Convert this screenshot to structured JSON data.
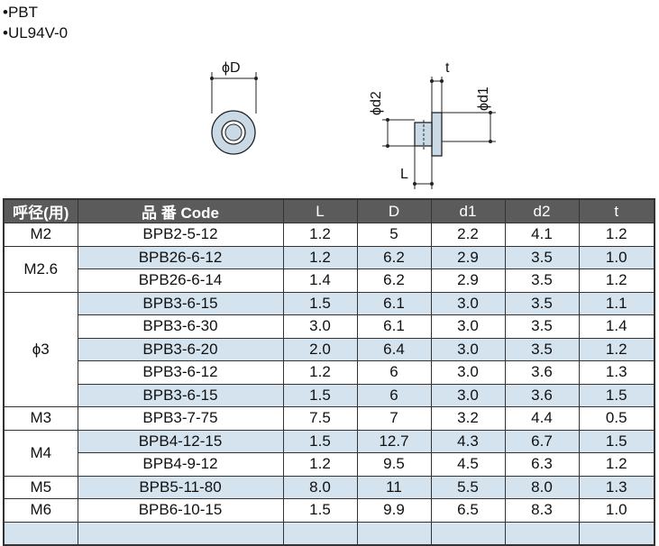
{
  "materials": [
    "•PBT",
    "•UL94V-0"
  ],
  "diagram_labels": {
    "front_D": "ϕD",
    "side_t": "t",
    "side_d2": "ϕd2",
    "side_d1": "ϕd1",
    "side_L": "L"
  },
  "table": {
    "headers": [
      "呼径(用)",
      "品 番 Code",
      "L",
      "D",
      "d1",
      "d2",
      "t"
    ],
    "groups": [
      {
        "size": "M2",
        "rows": [
          {
            "code": "BPB2-5-12",
            "L": "1.2",
            "D": "5",
            "d1": "2.2",
            "d2": "4.1",
            "t": "1.2"
          }
        ]
      },
      {
        "size": "M2.6",
        "rows": [
          {
            "code": "BPB26-6-12",
            "L": "1.2",
            "D": "6.2",
            "d1": "2.9",
            "d2": "3.5",
            "t": "1.0"
          },
          {
            "code": "BPB26-6-14",
            "L": "1.4",
            "D": "6.2",
            "d1": "2.9",
            "d2": "3.5",
            "t": "1.2"
          }
        ]
      },
      {
        "size": "ϕ3",
        "rows": [
          {
            "code": "BPB3-6-15",
            "L": "1.5",
            "D": "6.1",
            "d1": "3.0",
            "d2": "3.5",
            "t": "1.1"
          },
          {
            "code": "BPB3-6-30",
            "L": "3.0",
            "D": "6.1",
            "d1": "3.0",
            "d2": "3.5",
            "t": "1.4"
          },
          {
            "code": "BPB3-6-20",
            "L": "2.0",
            "D": "6.4",
            "d1": "3.0",
            "d2": "3.5",
            "t": "1.2"
          },
          {
            "code": "BPB3-6-12",
            "L": "1.2",
            "D": "6",
            "d1": "3.0",
            "d2": "3.6",
            "t": "1.3"
          },
          {
            "code": "BPB3-6-15",
            "L": "1.5",
            "D": "6",
            "d1": "3.0",
            "d2": "3.6",
            "t": "1.5"
          }
        ]
      },
      {
        "size": "M3",
        "rows": [
          {
            "code": "BPB3-7-75",
            "L": "7.5",
            "D": "7",
            "d1": "3.2",
            "d2": "4.4",
            "t": "0.5"
          }
        ]
      },
      {
        "size": "M4",
        "rows": [
          {
            "code": "BPB4-12-15",
            "L": "1.5",
            "D": "12.7",
            "d1": "4.3",
            "d2": "6.7",
            "t": "1.5"
          },
          {
            "code": "BPB4-9-12",
            "L": "1.2",
            "D": "9.5",
            "d1": "4.5",
            "d2": "6.3",
            "t": "1.2"
          }
        ]
      },
      {
        "size": "M5",
        "rows": [
          {
            "code": "BPB5-11-80",
            "L": "8.0",
            "D": "11",
            "d1": "5.5",
            "d2": "8.0",
            "t": "1.3"
          }
        ]
      },
      {
        "size": "M6",
        "rows": [
          {
            "code": "BPB6-10-15",
            "L": "1.5",
            "D": "9.9",
            "d1": "6.5",
            "d2": "8.3",
            "t": "1.0"
          }
        ]
      }
    ]
  },
  "colors": {
    "header_bg": "#5b5b5b",
    "shade": "#d5e3ee",
    "part_fill": "#c9d9e6"
  }
}
